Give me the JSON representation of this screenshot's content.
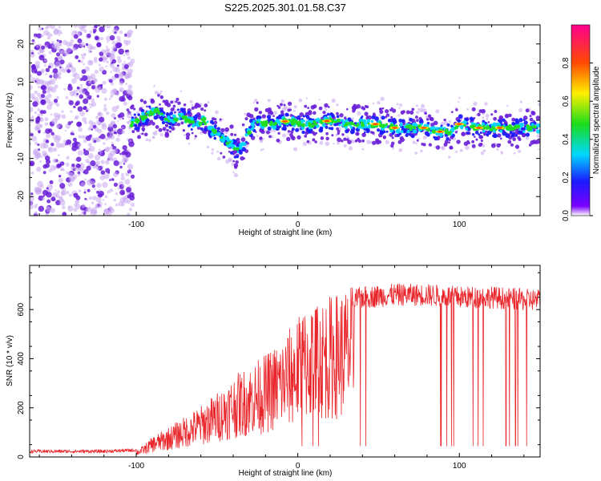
{
  "title": "S225.2025.301.01.58.C37",
  "colors": {
    "line": "#e8262b",
    "frame": "#000000",
    "spec_bg_dots": "#c9a8f0",
    "spec_dark_dots": "#6a1fd8"
  },
  "chart_data": [
    {
      "type": "heatmap",
      "title": "",
      "xlabel": "Height of straight line (km)",
      "ylabel": "Frequency (Hz)",
      "xlim": [
        -166,
        150
      ],
      "ylim": [
        -25,
        25
      ],
      "xticks": [
        -100,
        0,
        100
      ],
      "xtick_labels": [
        "-100",
        "0",
        "100"
      ],
      "yticks": [
        -20,
        -10,
        0,
        10,
        20
      ],
      "ytick_labels": [
        "-20",
        "-10",
        "0",
        "10",
        "20"
      ],
      "colorbar": {
        "label": "Normalized spectral amplitude",
        "range": [
          0,
          1
        ],
        "ticks": [
          0.0,
          0.2,
          0.4,
          0.6,
          0.8
        ],
        "tick_labels": [
          "0.0",
          "0.2",
          "0.4",
          "0.6",
          "0.8"
        ]
      },
      "ridge": {
        "x": [
          -103,
          -95,
          -88,
          -80,
          -72,
          -64,
          -58,
          -52,
          -46,
          -42,
          -38,
          -34,
          -30,
          -26,
          -22,
          -18,
          -14,
          -10,
          -5,
          0,
          10,
          20,
          30,
          40,
          50,
          60,
          70,
          80,
          85,
          90,
          95,
          100,
          110,
          120,
          130,
          140,
          150
        ],
        "freq": [
          -1,
          1,
          2.5,
          0,
          1,
          -1,
          0,
          -3,
          -5,
          -6,
          -8,
          -6,
          -3,
          0,
          -1,
          -1,
          -1,
          -0.5,
          0,
          -1,
          -1,
          0,
          -1,
          -1,
          -1,
          -2,
          -2,
          -2,
          -3,
          -3,
          -3,
          -1,
          -2,
          -2,
          -2,
          -2,
          -2
        ]
      }
    },
    {
      "type": "line",
      "title": "",
      "xlabel": "Height of straight line (km)",
      "ylabel": "SNR (10 * v/v)",
      "xlim": [
        -166,
        150
      ],
      "ylim": [
        0,
        780
      ],
      "xticks": [
        -100,
        0,
        100
      ],
      "xtick_labels": [
        "-100",
        "0",
        "100"
      ],
      "yticks": [
        0,
        200,
        400,
        600
      ],
      "ytick_labels": [
        "0",
        "200",
        "400",
        "600"
      ],
      "series": [
        {
          "name": "SNR",
          "envelope_x": [
            -166,
            -140,
            -120,
            -100,
            -95,
            -90,
            -80,
            -70,
            -60,
            -50,
            -40,
            -30,
            -20,
            -10,
            0,
            5,
            10,
            20,
            30,
            40,
            60,
            80,
            100,
            120,
            140,
            150
          ],
          "envelope_y": [
            20,
            20,
            20,
            25,
            45,
            75,
            110,
            150,
            190,
            240,
            300,
            340,
            380,
            440,
            520,
            560,
            580,
            600,
            630,
            650,
            660,
            660,
            650,
            650,
            640,
            640
          ],
          "dropout_value": 45
        }
      ]
    }
  ]
}
